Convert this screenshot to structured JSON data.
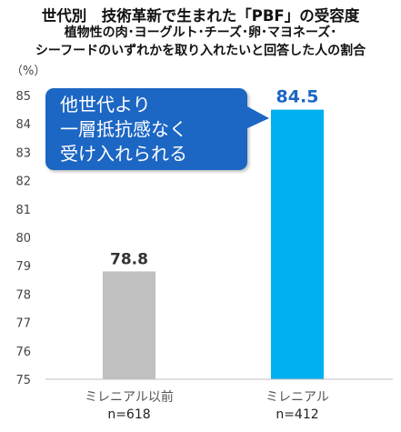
{
  "title": {
    "line1": "世代別　技術革新で生まれた「PBF」の受容度",
    "line2": "植物性の肉･ヨーグルト･チーズ･卵･マヨネーズ･",
    "line3": "シーフードのいずれかを取り入れたいと回答した人の割合"
  },
  "unit": "（%）",
  "callout": {
    "text": "他世代より\n一層抵抗感なく\n受け入れられる",
    "color": "#1c66c4"
  },
  "chart_data": {
    "type": "bar",
    "categories": [
      "ミレニアル以前",
      "ミレニアル"
    ],
    "sample_sizes": [
      "n=618",
      "n=412"
    ],
    "values": [
      78.8,
      84.5
    ],
    "value_labels": [
      "78.8",
      "84.5"
    ],
    "bar_colors": [
      "#c0c0c0",
      "#00b0f0"
    ],
    "value_label_colors": [
      "#333333",
      "#1c66c4"
    ],
    "ylim": [
      75,
      85
    ],
    "yticks": [
      75,
      76,
      77,
      78,
      79,
      80,
      81,
      82,
      83,
      84,
      85
    ],
    "ylabel": "（%）",
    "grid": false
  }
}
